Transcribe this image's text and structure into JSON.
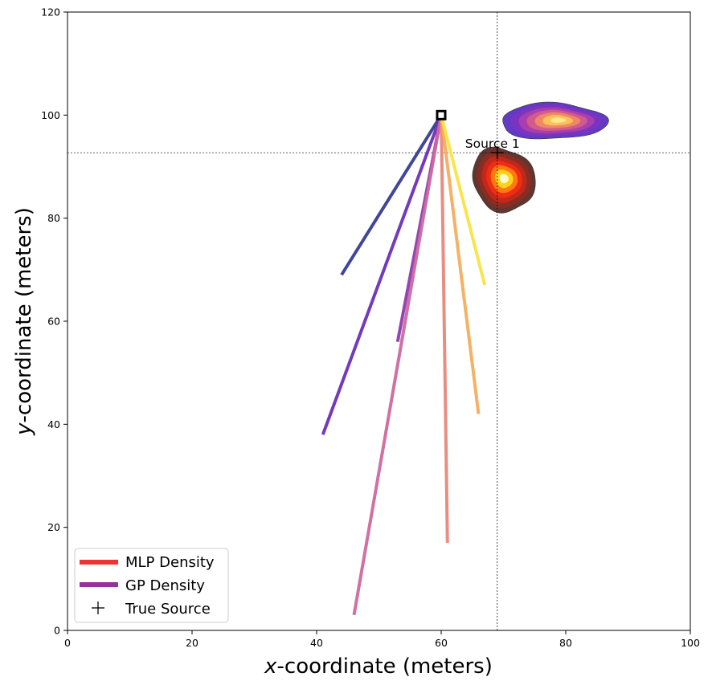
{
  "chart_data": {
    "type": "line",
    "title": "",
    "xlabel_var": "x",
    "xlabel_rest": "-coordinate (meters)",
    "ylabel_var": "y",
    "ylabel_rest": "-coordinate (meters)",
    "xlim": [
      0,
      100
    ],
    "ylim": [
      0,
      120
    ],
    "x_ticks": [
      "0",
      "20",
      "40",
      "60",
      "80",
      "100"
    ],
    "y_ticks": [
      "0",
      "20",
      "40",
      "60",
      "80",
      "100",
      "120"
    ],
    "grid": false,
    "origin": {
      "x": 60,
      "y": 100,
      "marker": "square"
    },
    "paths": [
      {
        "end": [
          44,
          69
        ],
        "color": "#363c93"
      },
      {
        "end": [
          41,
          38
        ],
        "color": "#6c30b8"
      },
      {
        "end": [
          53,
          56
        ],
        "color": "#8f3ab0"
      },
      {
        "end": [
          46,
          3
        ],
        "color": "#cd68a0"
      },
      {
        "end": [
          61,
          17
        ],
        "color": "#e8877a"
      },
      {
        "end": [
          66,
          42
        ],
        "color": "#f4ad5c"
      },
      {
        "end": [
          67,
          67
        ],
        "color": "#f8e444"
      }
    ],
    "true_source": {
      "name": "Source 1",
      "x": 69,
      "y": 92.7
    },
    "crosshair": {
      "x": 69,
      "y": 92.7
    },
    "densities": [
      {
        "name": "MLP Density",
        "cx": 70,
        "cy": 87.5,
        "rx": 4.8,
        "ry": 6.5,
        "angle": 40,
        "palette": [
          "#5a2a24",
          "#8a2c22",
          "#c0281c",
          "#f02d12",
          "#ff7a10",
          "#ffd21e",
          "#fffbc8"
        ]
      },
      {
        "name": "GP Density",
        "cx": 78,
        "cy": 98.8,
        "rx": 8.5,
        "ry": 3.5,
        "angle": 0,
        "palette": [
          "#5a2fc0",
          "#7b33c2",
          "#a83fae",
          "#d35a8c",
          "#f08866",
          "#fbc15a",
          "#fde98c"
        ]
      }
    ],
    "legend": {
      "position": "lower-left",
      "entries": [
        {
          "label": "MLP Density",
          "kind": "line",
          "color": "#ee3333"
        },
        {
          "label": "GP Density",
          "kind": "line",
          "color": "#943399"
        },
        {
          "label": "True Source",
          "kind": "plus",
          "color": "#000000"
        }
      ]
    }
  }
}
